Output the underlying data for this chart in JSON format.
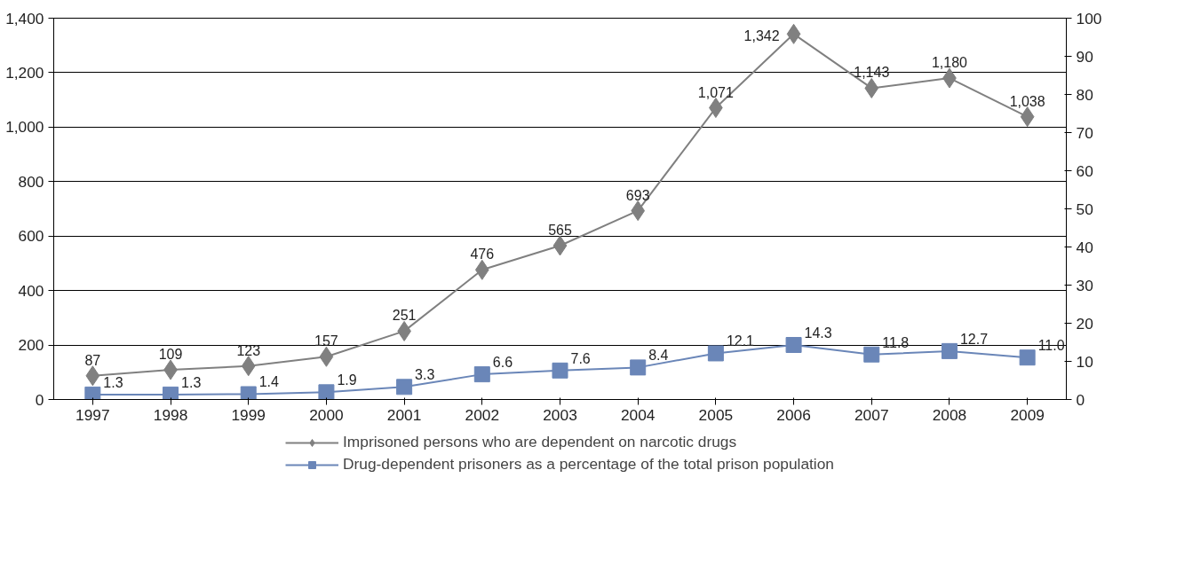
{
  "chart_data": {
    "type": "line",
    "categories": [
      "1997",
      "1998",
      "1999",
      "2000",
      "2001",
      "2002",
      "2003",
      "2004",
      "2005",
      "2006",
      "2007",
      "2008",
      "2009"
    ],
    "series": [
      {
        "name": "Imprisoned persons who are dependent on narcotic drugs",
        "color": "#808080",
        "marker": "diamond",
        "values": [
          87,
          109,
          123,
          157,
          251,
          476,
          565,
          693,
          1071,
          1342,
          1143,
          1180,
          1038
        ],
        "value_labels": [
          "87",
          "109",
          "123",
          "157",
          "251",
          "476",
          "565",
          "693",
          "1,071",
          "1,342",
          "1,143",
          "1,180",
          "1,038"
        ]
      },
      {
        "name": "Drug-dependent prisoners as a percentage of the total prison population",
        "color": "#6a86b8",
        "marker": "square",
        "axis": "y2",
        "values": [
          1.3,
          1.3,
          1.4,
          1.9,
          3.3,
          6.6,
          7.6,
          8.4,
          12.1,
          14.3,
          11.8,
          12.7,
          11.0
        ],
        "value_labels": [
          "1.3",
          "1.3",
          "1.4",
          "1.9",
          "3.3",
          "6.6",
          "7.6",
          "8.4",
          "12.1",
          "14.3",
          "11.8",
          "12.7",
          "11.0"
        ]
      }
    ],
    "ylim": [
      0,
      1400
    ],
    "yticks": [
      0,
      {
        "value": 200,
        "label": "200"
      },
      {
        "value": 400,
        "label": "400"
      },
      {
        "value": 600,
        "label": "600"
      },
      {
        "value": 800,
        "label": "800"
      },
      {
        "value": 1000,
        "label": "1,000"
      },
      {
        "value": 1200,
        "label": "1,200"
      },
      {
        "value": 1400,
        "label": "1,400"
      }
    ],
    "y2lim": [
      0,
      100
    ],
    "y2ticks": [
      0,
      10,
      20,
      30,
      40,
      50,
      60,
      70,
      80,
      90,
      100
    ],
    "grid": "y",
    "legend": "bottom",
    "line_style": "solid"
  }
}
